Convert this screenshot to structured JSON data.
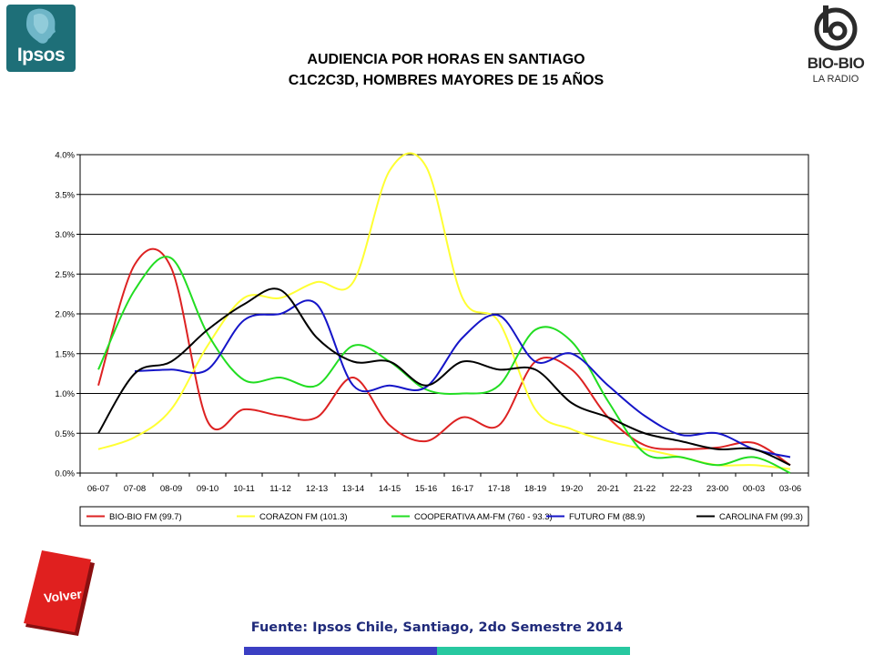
{
  "header": {
    "title_line1": "AUDIENCIA POR HORAS EN SANTIAGO",
    "title_line2": "C1C2C3D, HOMBRES MAYORES DE 15 AÑOS",
    "ipsos_logo_text": "Ipsos",
    "biobio_logo_text": "BIO-BIO",
    "biobio_logo_sub": "LA RADIO"
  },
  "footer": {
    "source": "Fuente: Ipsos Chile, Santiago, 2do Semestre 2014",
    "volver_label": "Volver"
  },
  "colors": {
    "ipsos_teal": "#1e6f78",
    "volver_red": "#e0201f",
    "footer_blue": "#3b3fc3",
    "footer_green": "#27c8a0"
  },
  "chart_data": {
    "type": "line",
    "title": "",
    "xlabel": "",
    "ylabel": "",
    "ylim": [
      0,
      4
    ],
    "yticks": [
      "0.0%",
      "0.5%",
      "1.0%",
      "1.5%",
      "2.0%",
      "2.5%",
      "3.0%",
      "3.5%",
      "4.0%"
    ],
    "grid": true,
    "legend_position": "bottom",
    "categories": [
      "06-07",
      "07-08",
      "08-09",
      "09-10",
      "10-11",
      "11-12",
      "12-13",
      "13-14",
      "14-15",
      "15-16",
      "16-17",
      "17-18",
      "18-19",
      "19-20",
      "20-21",
      "21-22",
      "22-23",
      "23-00",
      "00-03",
      "03-06"
    ],
    "series": [
      {
        "name": "BIO-BIO FM (99.7)",
        "color": "#dd2222",
        "values": [
          1.1,
          2.62,
          2.58,
          0.65,
          0.8,
          0.72,
          0.7,
          1.2,
          0.6,
          0.4,
          0.7,
          0.6,
          1.4,
          1.3,
          0.7,
          0.35,
          0.3,
          0.32,
          0.38,
          0.1
        ]
      },
      {
        "name": "CORAZON FM (101.3)",
        "color": "#ffff33",
        "values": [
          0.3,
          0.45,
          0.8,
          1.6,
          2.2,
          2.2,
          2.4,
          2.4,
          3.8,
          3.85,
          2.2,
          1.9,
          0.8,
          0.55,
          0.4,
          0.3,
          0.2,
          0.1,
          0.1,
          0.05
        ]
      },
      {
        "name": "COOPERATIVA AM-FM (760 - 93.3)",
        "color": "#22dd22",
        "values": [
          1.3,
          2.3,
          2.7,
          1.75,
          1.17,
          1.2,
          1.1,
          1.6,
          1.4,
          1.05,
          1.0,
          1.1,
          1.8,
          1.65,
          0.9,
          0.25,
          0.2,
          0.1,
          0.2,
          0.0
        ]
      },
      {
        "name": "FUTURO FM (88.9)",
        "color": "#1515c8",
        "values": [
          null,
          1.28,
          1.3,
          1.3,
          1.92,
          2.0,
          2.12,
          1.1,
          1.1,
          1.08,
          1.7,
          1.98,
          1.4,
          1.5,
          1.1,
          0.72,
          0.48,
          0.5,
          0.3,
          0.2
        ]
      },
      {
        "name": "CAROLINA FM (99.3)",
        "color": "#000000",
        "values": [
          0.5,
          1.25,
          1.4,
          1.8,
          2.12,
          2.3,
          1.7,
          1.4,
          1.4,
          1.1,
          1.4,
          1.3,
          1.3,
          0.88,
          0.7,
          0.5,
          0.4,
          0.3,
          0.3,
          0.1
        ]
      }
    ]
  }
}
